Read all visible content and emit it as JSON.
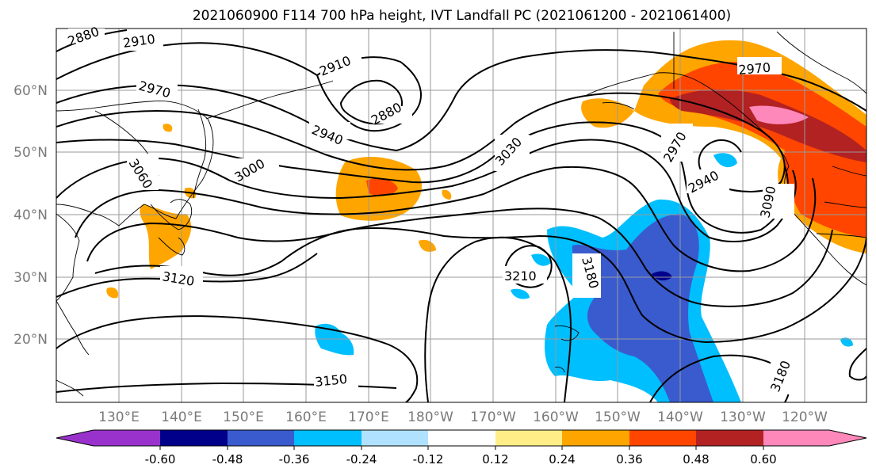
{
  "map": {
    "title": "2021060900 F114 700 hPa height, IVT Landfall PC (2021061200 - 2021061400)",
    "lat_labels": [
      "60°N",
      "50°N",
      "40°N",
      "30°N",
      "20°N"
    ],
    "lon_labels": [
      "130°E",
      "140°E",
      "150°E",
      "160°E",
      "170°E",
      "180°W",
      "170°W",
      "160°W",
      "150°W",
      "140°W",
      "130°W",
      "120°W"
    ],
    "contour_labels": [
      "2880",
      "2910",
      "2970",
      "2910",
      "2880",
      "2940",
      "3000",
      "3060",
      "3030",
      "2970",
      "2970",
      "2940",
      "3090",
      "3210",
      "3180",
      "3120",
      "3150",
      "3180"
    ],
    "colorbar": {
      "colors": [
        "#9932cc",
        "#00008b",
        "#3a5bcd",
        "#00bfff",
        "#b0e2ff",
        "#ffffff",
        "#ffee88",
        "#ffa500",
        "#ff4500",
        "#b22222",
        "#ff88bb"
      ],
      "tick_labels": [
        "-0.60",
        "-0.48",
        "-0.36",
        "-0.24",
        "-0.12",
        "0.12",
        "0.24",
        "0.36",
        "0.48",
        "0.60"
      ]
    }
  }
}
